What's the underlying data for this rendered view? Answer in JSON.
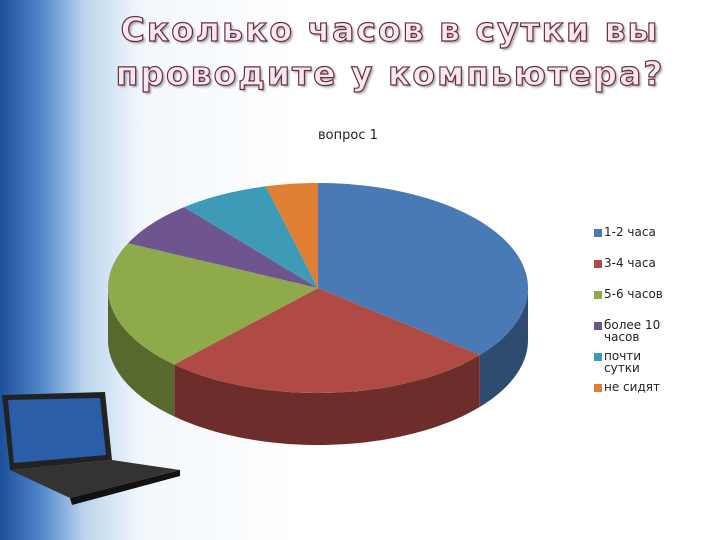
{
  "chart_data": {
    "type": "pie3d",
    "title": [
      "Сколько часов в сутки вы",
      "проводите у компьютера?"
    ],
    "chart_title": "вопрос 1",
    "categories": [
      "1-2 часа",
      "3-4 часа",
      "5-6 часов",
      "более 10 часов",
      "почти сутки",
      "не сидят"
    ],
    "values": [
      36,
      26,
      20,
      7,
      7,
      4
    ],
    "colors": [
      "#4a7ab5",
      "#b04a45",
      "#8eaa4a",
      "#6e558f",
      "#3d9bb8",
      "#e07f33"
    ],
    "legend": "right"
  }
}
